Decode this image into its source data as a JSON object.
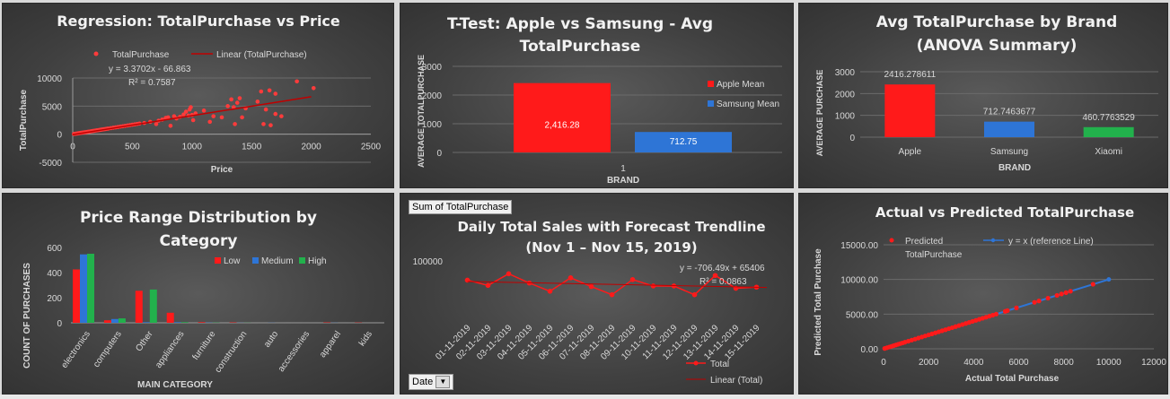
{
  "chart_data": [
    {
      "id": "p1",
      "type": "scatter",
      "title": "Regression: TotalPurchase vs Price",
      "xlabel": "Price",
      "ylabel": "TotalPurchase",
      "xlim": [
        0,
        2500
      ],
      "ylim": [
        -5000,
        10000
      ],
      "xticks": [
        0,
        500,
        1000,
        1500,
        2000,
        2500
      ],
      "yticks": [
        -5000,
        0,
        5000,
        10000
      ],
      "series": [
        {
          "name": "TotalPurchase",
          "color": "#ff3b3b",
          "points": [
            [
              10,
              40
            ],
            [
              20,
              70
            ],
            [
              30,
              100
            ],
            [
              40,
              130
            ],
            [
              50,
              170
            ],
            [
              60,
              200
            ],
            [
              70,
              240
            ],
            [
              80,
              270
            ],
            [
              90,
              300
            ],
            [
              100,
              330
            ],
            [
              110,
              360
            ],
            [
              120,
              390
            ],
            [
              130,
              430
            ],
            [
              140,
              460
            ],
            [
              150,
              500
            ],
            [
              160,
              530
            ],
            [
              170,
              570
            ],
            [
              180,
              600
            ],
            [
              190,
              640
            ],
            [
              200,
              670
            ],
            [
              210,
              700
            ],
            [
              220,
              740
            ],
            [
              230,
              770
            ],
            [
              240,
              810
            ],
            [
              250,
              840
            ],
            [
              260,
              880
            ],
            [
              270,
              900
            ],
            [
              280,
              940
            ],
            [
              290,
              980
            ],
            [
              300,
              1000
            ],
            [
              320,
              1080
            ],
            [
              340,
              1150
            ],
            [
              360,
              1210
            ],
            [
              380,
              1280
            ],
            [
              400,
              1350
            ],
            [
              420,
              1410
            ],
            [
              440,
              1480
            ],
            [
              460,
              1550
            ],
            [
              480,
              1620
            ],
            [
              500,
              1690
            ],
            [
              520,
              1750
            ],
            [
              540,
              1820
            ],
            [
              560,
              1900
            ],
            [
              600,
              2000
            ],
            [
              650,
              2200
            ],
            [
              700,
              1800
            ],
            [
              720,
              2400
            ],
            [
              750,
              2600
            ],
            [
              780,
              2900
            ],
            [
              800,
              3000
            ],
            [
              820,
              1500
            ],
            [
              850,
              3200
            ],
            [
              870,
              2800
            ],
            [
              900,
              3100
            ],
            [
              930,
              3500
            ],
            [
              950,
              4000
            ],
            [
              970,
              3300
            ],
            [
              980,
              4400
            ],
            [
              990,
              4800
            ],
            [
              1000,
              3400
            ],
            [
              1010,
              2500
            ],
            [
              1030,
              3700
            ],
            [
              1100,
              4200
            ],
            [
              1150,
              2200
            ],
            [
              1180,
              3200
            ],
            [
              1250,
              3000
            ],
            [
              1300,
              5000
            ],
            [
              1330,
              6200
            ],
            [
              1350,
              4800
            ],
            [
              1360,
              1800
            ],
            [
              1380,
              5600
            ],
            [
              1400,
              6400
            ],
            [
              1420,
              3000
            ],
            [
              1450,
              4600
            ],
            [
              1550,
              5800
            ],
            [
              1580,
              7600
            ],
            [
              1600,
              1800
            ],
            [
              1620,
              4400
            ],
            [
              1650,
              7800
            ],
            [
              1660,
              1600
            ],
            [
              1700,
              7200
            ],
            [
              1700,
              3600
            ],
            [
              1750,
              3200
            ],
            [
              1880,
              9400
            ],
            [
              2020,
              8200
            ]
          ]
        }
      ],
      "trendline": {
        "name": "Linear (TotalPurchase)",
        "color": "#c00000",
        "slope": 3.3702,
        "intercept": -66.863
      },
      "equation": "y = 3.3702x - 66.863",
      "r2": "R² = 0.7587",
      "legend": "top"
    },
    {
      "id": "p2",
      "type": "bar",
      "title": "T-Test: Apple vs Samsung - Avg TotalPurchase",
      "title_lines": [
        "T-Test: Apple vs Samsung - Avg",
        "TotalPurchase"
      ],
      "xlabel": "BRAND",
      "ylabel": "AVERAGE TOTALPURCHASE",
      "categories": [
        "1"
      ],
      "ylim": [
        0,
        3000
      ],
      "yticks": [
        0,
        1000,
        2000,
        3000
      ],
      "series": [
        {
          "name": "Apple Mean",
          "color": "#ff1a1a",
          "values": [
            2416.28
          ],
          "label": "2,416.28"
        },
        {
          "name": "Samsung Mean",
          "color": "#2e75d6",
          "values": [
            712.75
          ],
          "label": "712.75"
        }
      ],
      "legend": "right"
    },
    {
      "id": "p3",
      "type": "bar",
      "title": "Avg TotalPurchase by Brand (ANOVA Summary)",
      "title_lines": [
        "Avg TotalPurchase by Brand",
        "(ANOVA Summary)"
      ],
      "xlabel": "BRAND",
      "ylabel": "AVERAGE PURCHASE",
      "categories": [
        "Apple",
        "Samsung",
        "Xiaomi"
      ],
      "values": [
        2416.278611,
        712.7463677,
        460.7763529
      ],
      "labels": [
        "2416.278611",
        "712.7463677",
        "460.7763529"
      ],
      "colors": [
        "#ff1a1a",
        "#2e75d6",
        "#22b14c"
      ],
      "ylim": [
        0,
        3000
      ],
      "yticks": [
        0,
        1000,
        2000,
        3000
      ]
    },
    {
      "id": "p4",
      "type": "bar",
      "title": "Price Range Distribution by Category",
      "title_lines": [
        "Price Range Distribution by",
        "Category"
      ],
      "xlabel": "MAIN CATEGORY",
      "ylabel": "COUNT OF PURCHASES",
      "categories": [
        "electronics",
        "computers",
        "Other",
        "appliances",
        "furniture",
        "construction",
        "auto",
        "accessories",
        "apparel",
        "kids"
      ],
      "series": [
        {
          "name": "Low",
          "color": "#ff1a1a",
          "values": [
            425,
            20,
            255,
            80,
            5,
            3,
            0,
            0,
            3,
            2
          ]
        },
        {
          "name": "Medium",
          "color": "#2e75d6",
          "values": [
            545,
            30,
            5,
            5,
            2,
            1,
            1,
            0,
            1,
            0
          ]
        },
        {
          "name": "High",
          "color": "#22b14c",
          "values": [
            550,
            35,
            265,
            5,
            2,
            1,
            0,
            0,
            0,
            0
          ]
        }
      ],
      "ylim": [
        0,
        600
      ],
      "yticks": [
        0,
        200,
        400,
        600
      ],
      "legend": "top-right"
    },
    {
      "id": "p5",
      "type": "line",
      "title": "Daily Total Sales with Forecast Trendline",
      "title_lines": [
        "Daily Total Sales with Forecast Trendline",
        "(Nov 1 – Nov 15, 2019)"
      ],
      "pivot_field": "Sum of TotalPurchase",
      "axis_field": "Date",
      "x": [
        "01-11-2019",
        "02-11-2019",
        "03-11-2019",
        "04-11-2019",
        "05-11-2019",
        "06-11-2019",
        "07-11-2019",
        "08-11-2019",
        "09-11-2019",
        "10-11-2019",
        "11-11-2019",
        "12-11-2019",
        "13-11-2019",
        "14-11-2019",
        "15-11-2019"
      ],
      "series": [
        {
          "name": "Total",
          "color": "#ff1a1a",
          "values": [
            67000,
            58000,
            78000,
            62000,
            48000,
            71000,
            56000,
            42000,
            68000,
            57000,
            57000,
            42000,
            75000,
            53000,
            55000
          ]
        }
      ],
      "trendline": {
        "name": "Linear (Total)",
        "color": "#c00000",
        "slope": -706.49,
        "intercept": 65406
      },
      "equation": "y = -706.49x + 65406",
      "r2": "R² = 0.0863",
      "ylim": [
        0,
        100000
      ],
      "yticks": [
        100000
      ],
      "legend": "bottom-right"
    },
    {
      "id": "p6",
      "type": "scatter",
      "title": "Actual vs Predicted TotalPurchase",
      "xlabel": "Actual Total Purchase",
      "ylabel": "Predicted Total Purchase",
      "xlim": [
        0,
        12000
      ],
      "ylim": [
        0,
        15000
      ],
      "xticks": [
        0,
        2000,
        4000,
        6000,
        8000,
        10000,
        12000
      ],
      "yticks": [
        "0.00",
        "5000.00",
        "10000.00",
        "15000.00"
      ],
      "series": [
        {
          "name": "Predicted TotalPurchase",
          "color": "#ff1a1a",
          "points": [
            [
              50,
              50
            ],
            [
              150,
              150
            ],
            [
              250,
              250
            ],
            [
              350,
              350
            ],
            [
              450,
              450
            ],
            [
              550,
              550
            ],
            [
              650,
              650
            ],
            [
              750,
              750
            ],
            [
              850,
              850
            ],
            [
              950,
              950
            ],
            [
              1100,
              1100
            ],
            [
              1250,
              1250
            ],
            [
              1400,
              1400
            ],
            [
              1550,
              1550
            ],
            [
              1700,
              1700
            ],
            [
              1850,
              1850
            ],
            [
              2000,
              2000
            ],
            [
              2150,
              2150
            ],
            [
              2300,
              2300
            ],
            [
              2450,
              2450
            ],
            [
              2600,
              2600
            ],
            [
              2750,
              2750
            ],
            [
              2900,
              2900
            ],
            [
              3050,
              3050
            ],
            [
              3200,
              3200
            ],
            [
              3350,
              3350
            ],
            [
              3500,
              3500
            ],
            [
              3650,
              3650
            ],
            [
              3800,
              3800
            ],
            [
              3950,
              3950
            ],
            [
              4100,
              4100
            ],
            [
              4250,
              4250
            ],
            [
              4400,
              4400
            ],
            [
              4550,
              4550
            ],
            [
              4700,
              4700
            ],
            [
              4850,
              4850
            ],
            [
              5000,
              5000
            ],
            [
              5400,
              5400
            ],
            [
              5500,
              5500
            ],
            [
              5900,
              5900
            ],
            [
              6700,
              6700
            ],
            [
              6900,
              6900
            ],
            [
              7300,
              7300
            ],
            [
              7700,
              7700
            ],
            [
              7900,
              7900
            ],
            [
              8100,
              8100
            ],
            [
              8300,
              8300
            ],
            [
              9300,
              9300
            ]
          ]
        },
        {
          "name": "y = x (reference Line)",
          "color": "#2e75d6",
          "line": [
            [
              0,
              0
            ],
            [
              10000,
              10000
            ]
          ]
        }
      ],
      "legend": "top"
    }
  ]
}
